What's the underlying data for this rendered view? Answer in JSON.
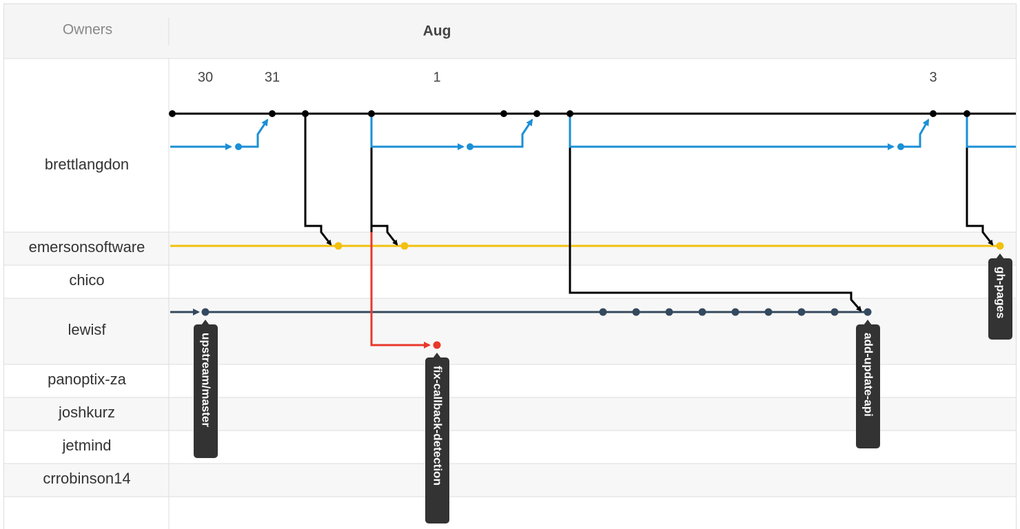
{
  "header": {
    "owners_label": "Owners",
    "month": "Aug"
  },
  "days": [
    "30",
    "31",
    "1",
    "3"
  ],
  "owners": [
    "brettlangdon",
    "emersonsoftware",
    "chico",
    "lewisf",
    "panoptix-za",
    "joshkurz",
    "jetmind",
    "crrobinson14"
  ],
  "branches": [
    "upstream/master",
    "fix-callback-detection",
    "add-update-api",
    "gh-pages"
  ]
}
